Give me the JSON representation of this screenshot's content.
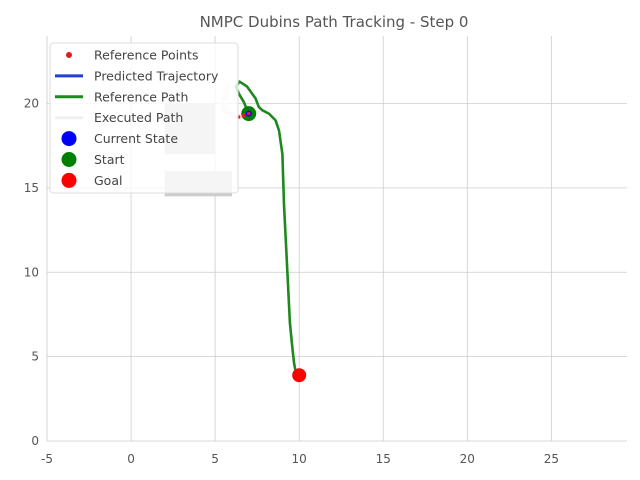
{
  "chart_data": {
    "type": "line",
    "title": "NMPC Dubins Path Tracking - Step 0",
    "xlabel": "",
    "ylabel": "",
    "xlim": [
      -5,
      29.5
    ],
    "ylim": [
      0,
      24
    ],
    "xticks": [
      -5,
      0,
      5,
      10,
      15,
      20,
      25
    ],
    "yticks": [
      0,
      5,
      10,
      15,
      20
    ],
    "grid": true,
    "legend": {
      "placement": "top-left",
      "entries": [
        {
          "label": "Reference Points",
          "marker": "dot",
          "color": "#e41a1c"
        },
        {
          "label": "Predicted Trajectory",
          "marker": "line",
          "color": "#1f3fd8"
        },
        {
          "label": "Reference Path",
          "marker": "line",
          "color": "#1e8a1e"
        },
        {
          "label": "Executed Path",
          "marker": "line",
          "color": "#f0f0f0"
        },
        {
          "label": "Current State",
          "marker": "circle",
          "color": "#0000ff"
        },
        {
          "label": "Start",
          "marker": "circle",
          "color": "#008000"
        },
        {
          "label": "Goal",
          "marker": "circle",
          "color": "#ff0000"
        }
      ]
    },
    "series": [
      {
        "name": "Reference Path",
        "color": "#1e8a1e",
        "x": [
          7.0,
          6.7,
          6.4,
          6.25,
          6.45,
          6.9,
          7.4,
          7.6,
          7.8,
          8.2,
          8.6,
          8.8,
          9.0,
          9.1,
          9.3,
          9.45,
          9.6,
          9.7,
          9.75,
          9.85,
          10.0
        ],
        "y": [
          19.4,
          20.1,
          20.6,
          21.0,
          21.3,
          21.0,
          20.3,
          19.8,
          19.6,
          19.4,
          19.0,
          18.4,
          17.0,
          14.0,
          10.0,
          7.0,
          5.5,
          4.6,
          4.3,
          4.0,
          3.9
        ]
      },
      {
        "name": "Predicted Trajectory",
        "color": "#1f3fd8",
        "x": [
          6.4,
          6.7,
          7.0
        ],
        "y": [
          19.2,
          19.3,
          19.4
        ]
      },
      {
        "name": "Executed Path",
        "color": "#f0f0f0",
        "x": [
          5.8,
          5.6,
          5.5,
          5.65,
          6.1,
          6.6
        ],
        "y": [
          21.0,
          20.5,
          20.0,
          19.5,
          19.25,
          19.2
        ]
      }
    ],
    "points": {
      "reference_points": {
        "x": [
          6.4,
          6.7,
          7.0
        ],
        "y": [
          19.2,
          19.3,
          19.4
        ]
      },
      "current_state": {
        "x": 7.0,
        "y": 19.4
      },
      "start": {
        "x": 7.0,
        "y": 19.4
      },
      "goal": {
        "x": 10.0,
        "y": 3.9
      }
    },
    "obstacles": [
      {
        "x0": 2.0,
        "x1": 5.0,
        "y0": 17.0,
        "y1": 20.0,
        "color": "#cccccc"
      },
      {
        "x0": 2.0,
        "x1": 6.0,
        "y0": 14.5,
        "y1": 16.0,
        "color": "#cccccc"
      }
    ],
    "colors": {
      "grid": "#cccccc",
      "text": "#555555",
      "legend_border": "#dddddd"
    }
  }
}
